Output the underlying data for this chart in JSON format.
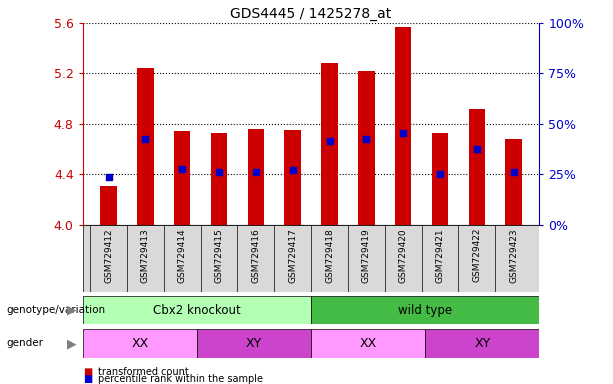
{
  "title": "GDS4445 / 1425278_at",
  "samples": [
    "GSM729412",
    "GSM729413",
    "GSM729414",
    "GSM729415",
    "GSM729416",
    "GSM729417",
    "GSM729418",
    "GSM729419",
    "GSM729420",
    "GSM729421",
    "GSM729422",
    "GSM729423"
  ],
  "bar_values": [
    4.31,
    5.24,
    4.74,
    4.73,
    4.76,
    4.75,
    5.28,
    5.22,
    5.57,
    4.73,
    4.92,
    4.68
  ],
  "blue_dot_values": [
    4.38,
    4.68,
    4.44,
    4.42,
    4.42,
    4.43,
    4.66,
    4.68,
    4.73,
    4.4,
    4.6,
    4.42
  ],
  "bar_bottom": 4.0,
  "ylim": [
    4.0,
    5.6
  ],
  "y_left_ticks": [
    4.0,
    4.4,
    4.8,
    5.2,
    5.6
  ],
  "y_right_labels": [
    "0%",
    "25%",
    "50%",
    "75%",
    "100%"
  ],
  "bar_color": "#cc0000",
  "dot_color": "#0000cc",
  "dot_size": 18,
  "tick_label_color": "#cc0000",
  "right_axis_color": "#0000cc",
  "cbx2_color_light": "#b3ffb3",
  "cbx2_color_dark": "#44bb44",
  "xx_color": "#ff99ff",
  "xy_color": "#cc44cc",
  "legend_items": [
    {
      "label": "transformed count",
      "color": "#cc0000"
    },
    {
      "label": "percentile rank within the sample",
      "color": "#0000cc"
    }
  ]
}
